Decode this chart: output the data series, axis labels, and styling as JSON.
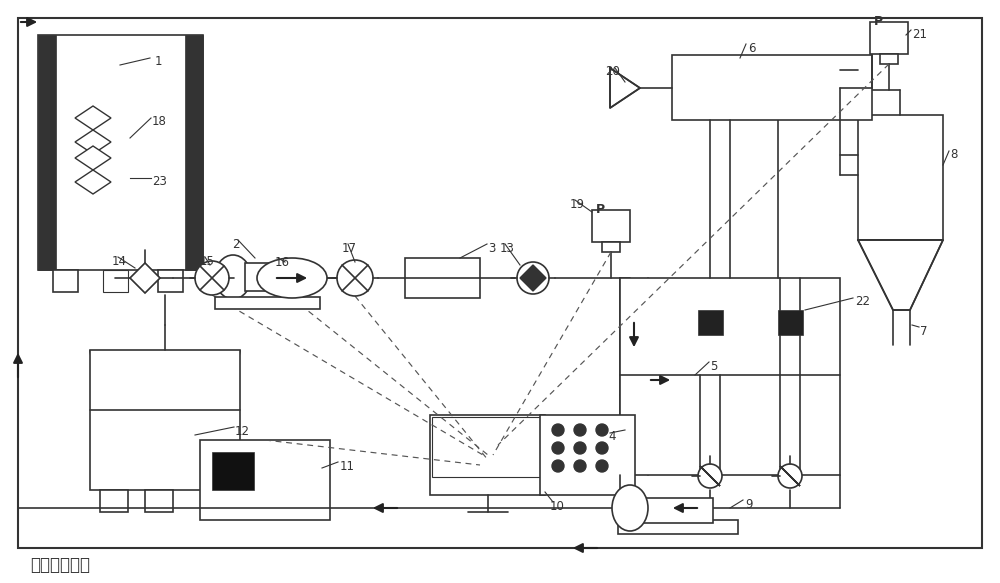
{
  "bg_color": "#ffffff",
  "line_color": "#333333",
  "title_text": "泥浆回流管线",
  "figsize": [
    10.0,
    5.83
  ],
  "dpi": 100
}
